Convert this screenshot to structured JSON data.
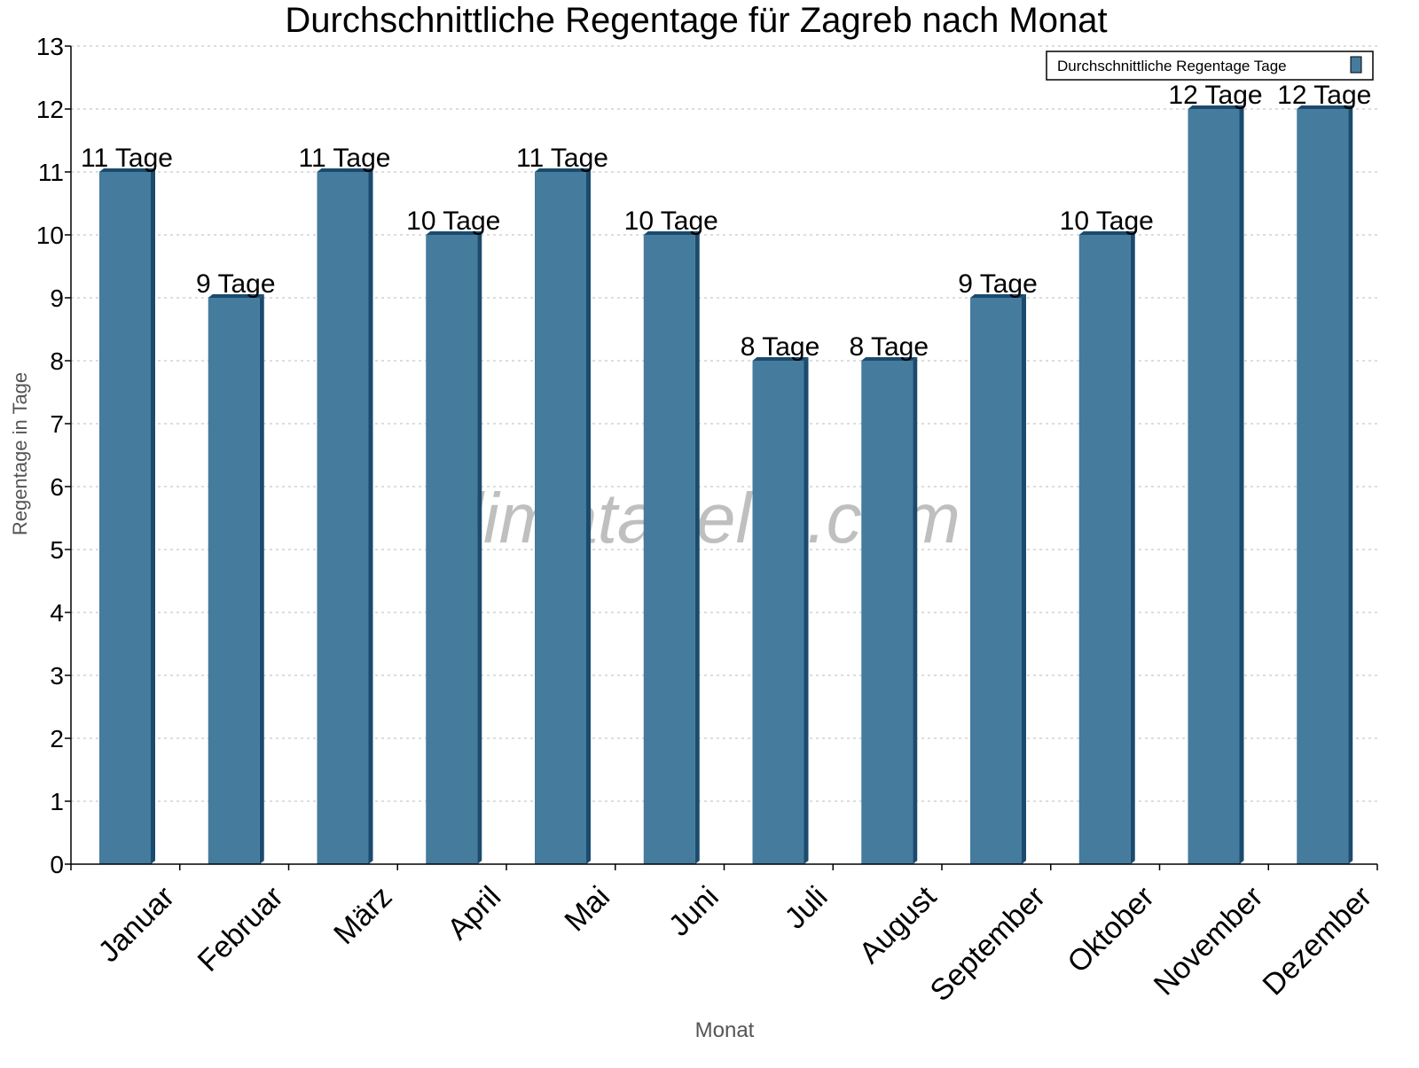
{
  "chart_data": {
    "type": "bar",
    "title": "Durchschnittliche Regentage für Zagreb nach Monat",
    "xlabel": "Monat",
    "ylabel": "Regentage in Tage",
    "categories": [
      "Januar",
      "Februar",
      "März",
      "April",
      "Mai",
      "Juni",
      "Juli",
      "August",
      "September",
      "Oktober",
      "November",
      "Dezember"
    ],
    "series": [
      {
        "name": "Durchschnittliche Regentage Tage",
        "values": [
          11,
          9,
          11,
          10,
          11,
          10,
          8,
          8,
          9,
          10,
          12,
          12
        ]
      }
    ],
    "data_labels": [
      "11 Tage",
      "9 Tage",
      "11 Tage",
      "10 Tage",
      "11 Tage",
      "10 Tage",
      "8 Tage",
      "8 Tage",
      "9 Tage",
      "10 Tage",
      "12 Tage",
      "12 Tage"
    ],
    "yticks": [
      "0",
      "1",
      "2",
      "3",
      "4",
      "5",
      "6",
      "7",
      "8",
      "9",
      "10",
      "11",
      "12",
      "13"
    ],
    "ylim": [
      0,
      13
    ],
    "grid": true,
    "legend_position": "top-right",
    "watermark": "klimatabelle.com",
    "colors": {
      "bar": "#457b9d",
      "bar_side": "#1a4b6e"
    }
  }
}
